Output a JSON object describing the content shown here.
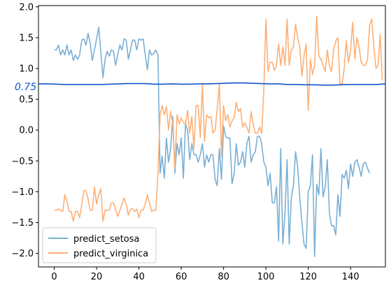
{
  "chart_data": {
    "type": "line",
    "title": "",
    "xlabel": "",
    "ylabel": "",
    "xlim": [
      -7.45,
      156.45
    ],
    "ylim": [
      -2.22,
      2.02
    ],
    "xticks": [
      0,
      20,
      40,
      60,
      80,
      100,
      120,
      140
    ],
    "yticks": [
      -2.0,
      -1.5,
      -1.0,
      -0.5,
      0.0,
      0.5,
      1.0,
      1.5,
      2.0
    ],
    "xtick_labels": [
      "0",
      "20",
      "40",
      "60",
      "80",
      "100",
      "120",
      "140"
    ],
    "ytick_labels": [
      "−2.0",
      "−1.5",
      "−1.0",
      "−0.5",
      "0.0",
      "0.5",
      "1.0",
      "1.5",
      "2.0"
    ],
    "grid": false,
    "legend_position": "lower-left",
    "series": [
      {
        "name": "predict_setosa",
        "color": "#7aafd4",
        "values": [
          1.3,
          1.3,
          1.38,
          1.22,
          1.3,
          1.22,
          1.38,
          1.22,
          1.3,
          1.13,
          1.22,
          1.15,
          1.22,
          1.46,
          1.48,
          1.38,
          1.57,
          1.4,
          1.13,
          1.3,
          1.48,
          1.67,
          1.28,
          0.85,
          1.15,
          1.28,
          1.2,
          1.3,
          1.28,
          1.05,
          1.22,
          1.38,
          1.3,
          1.48,
          1.46,
          1.15,
          1.3,
          1.46,
          1.46,
          1.3,
          1.48,
          1.46,
          1.48,
          1.22,
          0.98,
          1.3,
          1.22,
          1.24,
          1.3,
          1.22,
          -0.7,
          -0.42,
          -0.78,
          -0.13,
          -0.52,
          -0.3,
          0.22,
          -0.7,
          -0.22,
          -0.4,
          -0.13,
          -0.78,
          0.1,
          0.0,
          -0.48,
          -0.22,
          -0.4,
          -0.4,
          -0.52,
          -0.4,
          -0.22,
          -0.6,
          -0.4,
          -0.52,
          -0.4,
          -0.4,
          -0.8,
          -0.9,
          -0.3,
          -0.8,
          0.07,
          -0.1,
          -0.13,
          -0.13,
          -0.87,
          -0.7,
          -0.22,
          -0.57,
          -0.52,
          -0.35,
          -0.6,
          -0.22,
          -0.1,
          -0.52,
          -0.4,
          -0.35,
          -0.1,
          -0.1,
          -0.22,
          -0.52,
          -0.6,
          -0.9,
          -0.7,
          -1.18,
          -1.18,
          -0.92,
          -1.8,
          -0.3,
          -1.85,
          -1.35,
          -0.48,
          -1.85,
          -1.1,
          -0.9,
          -0.35,
          -0.6,
          -1.1,
          -1.5,
          -1.85,
          -1.92,
          -1.0,
          -0.9,
          -0.4,
          -2.05,
          -0.88,
          -1.05,
          -0.3,
          -1.08,
          -0.92,
          -0.48,
          -1.35,
          -1.55,
          -1.55,
          -1.7,
          -1.05,
          -1.4,
          -0.72,
          -0.78,
          -0.65,
          -0.95,
          -0.55,
          -0.75,
          -0.52,
          -0.48,
          -0.6,
          -0.75,
          -0.55,
          -0.52,
          -0.62,
          -0.7
        ]
      },
      {
        "name": "predict_virginica",
        "color": "#fdb077",
        "values": [
          -1.3,
          -1.3,
          -1.28,
          -1.3,
          -1.32,
          -1.05,
          -1.15,
          -1.32,
          -1.32,
          -1.48,
          -1.32,
          -1.32,
          -1.42,
          -1.2,
          -0.98,
          -0.98,
          -1.12,
          -1.3,
          -1.3,
          -0.92,
          -1.2,
          -1.05,
          -0.95,
          -1.48,
          -1.3,
          -1.3,
          -1.3,
          -1.18,
          -1.18,
          -1.3,
          -1.4,
          -1.3,
          -1.2,
          -1.1,
          -1.2,
          -1.38,
          -1.28,
          -1.28,
          -1.32,
          -1.28,
          -1.42,
          -1.3,
          -1.3,
          -1.2,
          -1.05,
          -1.18,
          -1.32,
          -1.3,
          -1.3,
          -0.7,
          0.25,
          0.4,
          0.25,
          0.38,
          0.0,
          0.3,
          0.1,
          -0.62,
          0.25,
          0.1,
          0.2,
          0.12,
          0.1,
          0.32,
          -0.05,
          0.22,
          -0.3,
          0.4,
          0.4,
          -0.12,
          0.75,
          -0.18,
          0.25,
          0.2,
          0.22,
          -0.05,
          0.0,
          0.35,
          0.75,
          -0.42,
          0.4,
          0.15,
          0.25,
          0.05,
          0.15,
          0.2,
          0.45,
          0.3,
          0.35,
          0.05,
          0.12,
          0.05,
          -0.05,
          0.3,
          0.1,
          -0.05,
          -0.05,
          0.05,
          -0.05,
          0.65,
          1.8,
          0.95,
          1.1,
          1.1,
          0.97,
          1.05,
          1.4,
          1.05,
          1.35,
          1.05,
          1.8,
          1.05,
          1.3,
          1.35,
          1.72,
          1.5,
          1.35,
          0.88,
          1.2,
          1.4,
          0.32,
          1.15,
          0.9,
          1.05,
          1.85,
          1.2,
          1.15,
          1.05,
          0.95,
          1.3,
          1.05,
          0.95,
          1.3,
          1.45,
          1.5,
          0.75,
          0.75,
          1.0,
          1.45,
          1.1,
          1.3,
          1.75,
          1.15,
          1.5,
          1.35,
          1.1,
          1.05,
          1.05,
          1.15,
          1.7,
          1.8,
          1.35,
          1.0,
          1.05,
          1.55,
          0.8
        ]
      }
    ],
    "annotation": {
      "text": "0.75",
      "color": "#1155cc",
      "line_values": [
        0.75,
        0.75,
        0.745,
        0.74,
        0.74,
        0.74,
        0.74,
        0.74,
        0.745,
        0.75,
        0.755,
        0.755,
        0.755,
        0.745,
        0.745,
        0.75,
        0.745,
        0.745,
        0.75,
        0.75,
        0.755,
        0.76,
        0.765,
        0.765,
        0.76,
        0.755,
        0.75,
        0.75,
        0.74,
        0.74,
        0.735,
        0.735,
        0.73,
        0.73,
        0.735,
        0.74,
        0.74,
        0.74,
        0.74,
        0.75
      ]
    }
  }
}
